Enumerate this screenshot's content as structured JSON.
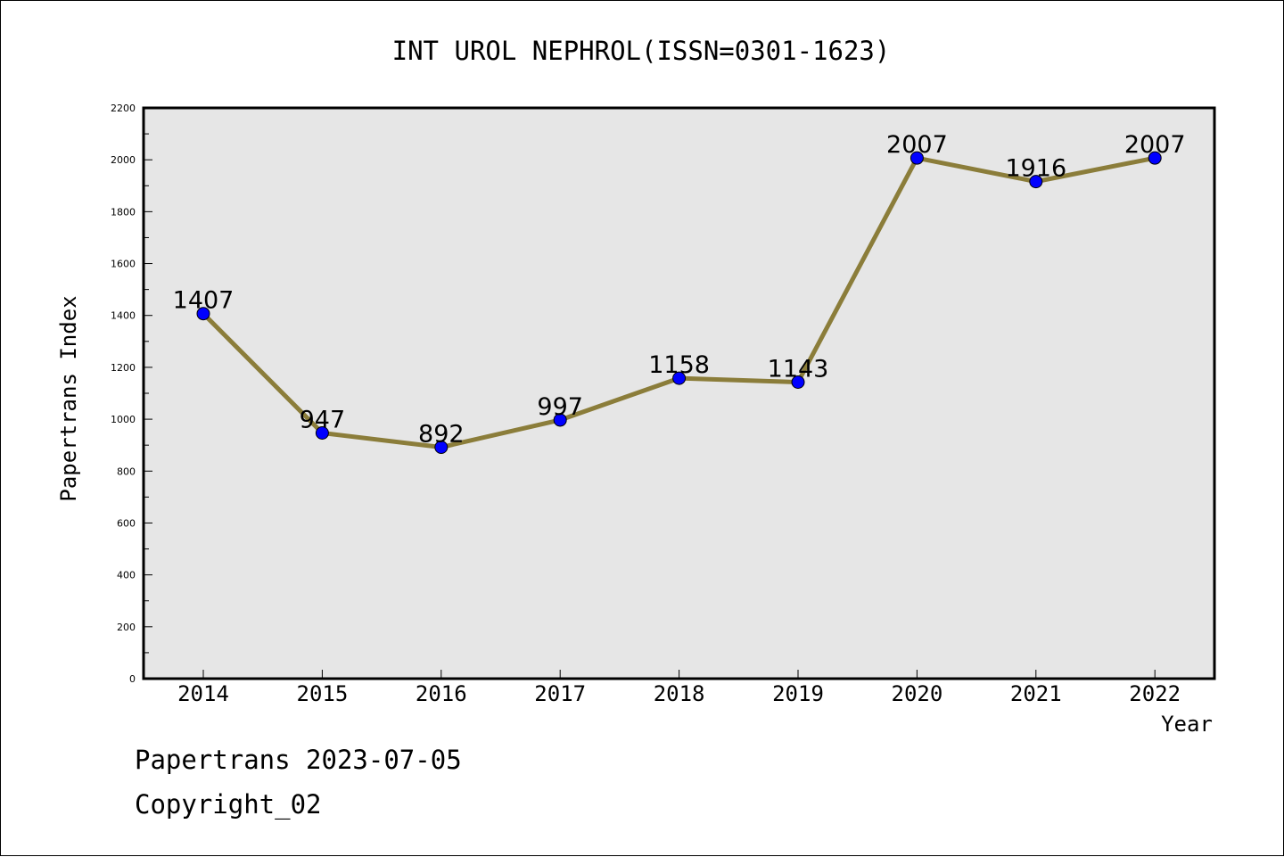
{
  "chart_data": {
    "type": "line",
    "title": "INT UROL NEPHROL(ISSN=0301-1623)",
    "xlabel": "Year",
    "ylabel": "Papertrans Index",
    "categories": [
      "2014",
      "2015",
      "2016",
      "2017",
      "2018",
      "2019",
      "2020",
      "2021",
      "2022"
    ],
    "series": [
      {
        "values": [
          1407,
          947,
          892,
          997,
          1158,
          1143,
          2007,
          1916,
          2007
        ]
      }
    ],
    "data_labels": [
      "1407",
      "947",
      "892",
      "997",
      "1158",
      "1143",
      "2007",
      "1916",
      "2007"
    ],
    "ylim": [
      0,
      2200
    ],
    "y_ticks": [
      "0",
      "200",
      "400",
      "600",
      "800",
      "1000",
      "1200",
      "1400",
      "1600",
      "1800",
      "2000",
      "2200"
    ],
    "grid": false,
    "colors": {
      "line": "#8b7d3a",
      "marker": "#0000ff",
      "plot_bg": "#e6e6e6"
    }
  },
  "footer": {
    "stamp": "Papertrans 2023-07-05",
    "copyright": "Copyright_02"
  }
}
